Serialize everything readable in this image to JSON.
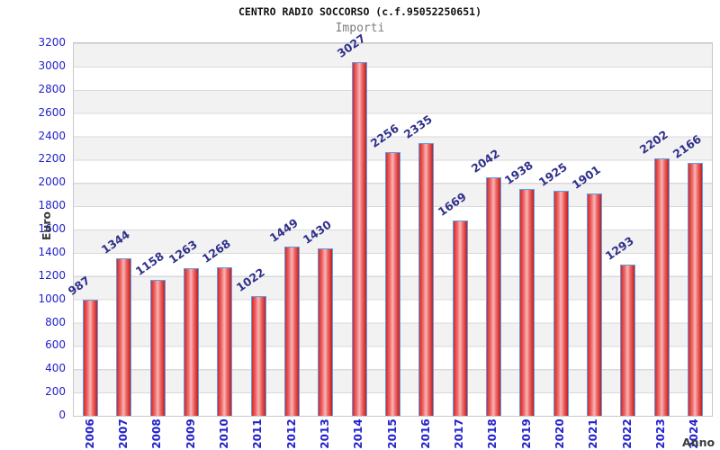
{
  "header": {
    "title": "CENTRO RADIO SOCCORSO (c.f.95052250651)",
    "subtitle": "Importi"
  },
  "axes": {
    "y_title": "Euro",
    "x_title": "Anno"
  },
  "chart_data": {
    "type": "bar",
    "title": "CENTRO RADIO SOCCORSO (c.f.95052250651)",
    "subtitle": "Importi",
    "xlabel": "Anno",
    "ylabel": "Euro",
    "categories": [
      "2006",
      "2007",
      "2008",
      "2009",
      "2010",
      "2011",
      "2012",
      "2013",
      "2014",
      "2015",
      "2016",
      "2017",
      "2018",
      "2019",
      "2020",
      "2021",
      "2022",
      "2023",
      "2024"
    ],
    "values": [
      987,
      1344,
      1158,
      1263,
      1268,
      1022,
      1449,
      1430,
      3027,
      2256,
      2335,
      1669,
      2042,
      1938,
      1925,
      1901,
      1293,
      2202,
      2166
    ],
    "ylim": [
      0,
      3200
    ],
    "ytick_step": 200,
    "grid": "horizontal-bands-alternating",
    "legend": "none",
    "colors": {
      "bar_red_stops": [
        "#d82828",
        "#ef6a6a",
        "#f7b6b6",
        "#ef6a6a",
        "#c41d1d"
      ],
      "bar_border_blue": "#5aa0e6",
      "tick_label_blue": "#2222cc",
      "value_label_navy": "#30308c",
      "band_gray": "#f2f2f2",
      "band_white": "#ffffff",
      "grid_line": "#d9d9d9",
      "plot_border": "#c9c9c9",
      "axis_title_gray": "#3c3c3c"
    }
  }
}
